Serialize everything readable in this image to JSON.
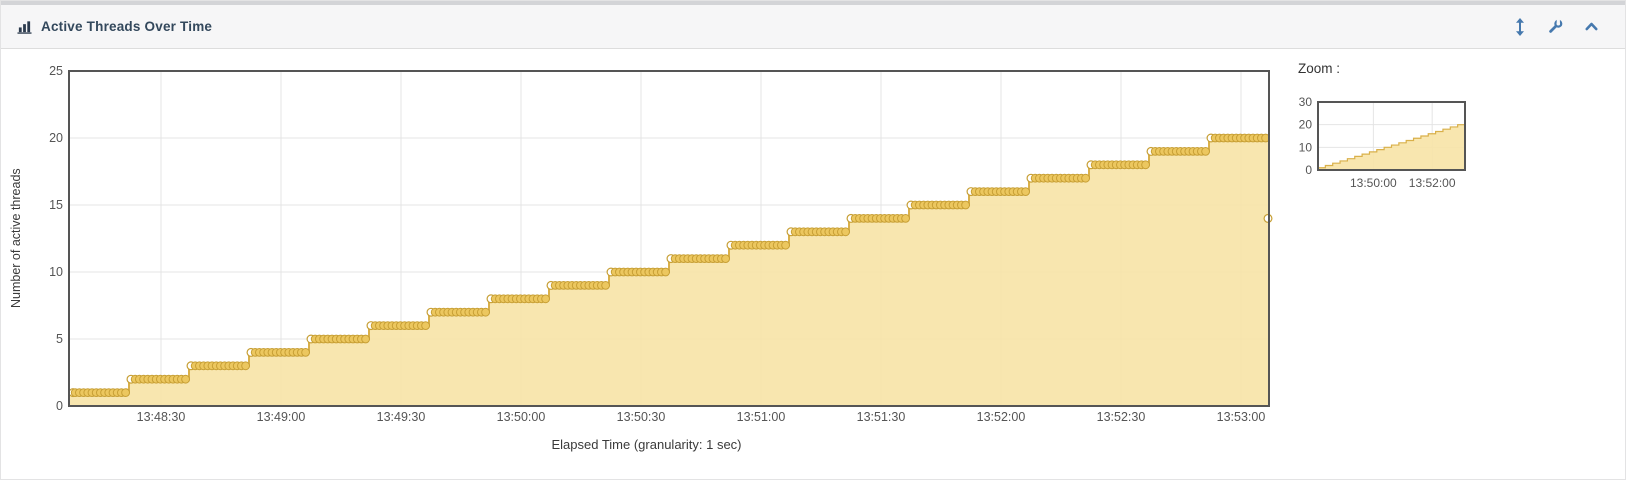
{
  "header": {
    "title": "Active Threads Over Time",
    "left_icon": "bar-chart-icon",
    "actions": [
      {
        "name": "resize-vertical-icon"
      },
      {
        "name": "wrench-icon"
      },
      {
        "name": "chevron-up-icon"
      }
    ]
  },
  "colors": {
    "series_fill": "rgba(247,227,166,0.9)",
    "series_line": "#d9b04a",
    "marker_fill": "#ecc75f",
    "marker_stroke": "#c79f35",
    "marker_first_fill": "#ffffff",
    "chart_border": "#555555",
    "gridline": "#e4e4e4",
    "tick_label": "#555555",
    "axis_title": "#3a3a3a",
    "header_bg": "#f6f6f7",
    "header_accent": "#4679ae",
    "title_color": "#33485c",
    "top_strip": "#d3d4d7"
  },
  "chart_data": [
    {
      "type": "area",
      "name": "main-chart",
      "xlabel": "Elapsed Time (granularity: 1 sec)",
      "ylabel": "Number of active threads",
      "x_start_time": "13:48:07",
      "x_end_time": "13:53:07",
      "x_span_seconds": 300,
      "ylim": [
        0,
        25
      ],
      "yticks": [
        0,
        5,
        10,
        15,
        20,
        25
      ],
      "xticks": [
        {
          "t": 23,
          "label": "13:48:30"
        },
        {
          "t": 53,
          "label": "13:49:00"
        },
        {
          "t": 83,
          "label": "13:49:30"
        },
        {
          "t": 113,
          "label": "13:50:00"
        },
        {
          "t": 143,
          "label": "13:50:30"
        },
        {
          "t": 173,
          "label": "13:51:00"
        },
        {
          "t": 203,
          "label": "13:51:30"
        },
        {
          "t": 233,
          "label": "13:52:00"
        },
        {
          "t": 263,
          "label": "13:52:30"
        },
        {
          "t": 293,
          "label": "13:53:00"
        }
      ],
      "grid": true,
      "legend": "none",
      "series": [
        {
          "name": "Active threads",
          "step_interval_seconds": 15,
          "points": [
            [
              0,
              1
            ],
            [
              15,
              2
            ],
            [
              30,
              3
            ],
            [
              45,
              4
            ],
            [
              60,
              5
            ],
            [
              75,
              6
            ],
            [
              90,
              7
            ],
            [
              105,
              8
            ],
            [
              120,
              9
            ],
            [
              135,
              10
            ],
            [
              150,
              11
            ],
            [
              165,
              12
            ],
            [
              180,
              13
            ],
            [
              195,
              14
            ],
            [
              210,
              15
            ],
            [
              225,
              16
            ],
            [
              240,
              17
            ],
            [
              255,
              18
            ],
            [
              270,
              19
            ],
            [
              285,
              20
            ],
            [
              300,
              14
            ]
          ]
        }
      ]
    },
    {
      "type": "area",
      "name": "zoom-overview",
      "label": "Zoom :",
      "ylim": [
        0,
        30
      ],
      "yticks": [
        0,
        10,
        20,
        30
      ],
      "xticks": [
        {
          "t": 113,
          "label": "13:50:00"
        },
        {
          "t": 233,
          "label": "13:52:00"
        }
      ],
      "grid": true,
      "series_ref": "main-chart"
    }
  ]
}
